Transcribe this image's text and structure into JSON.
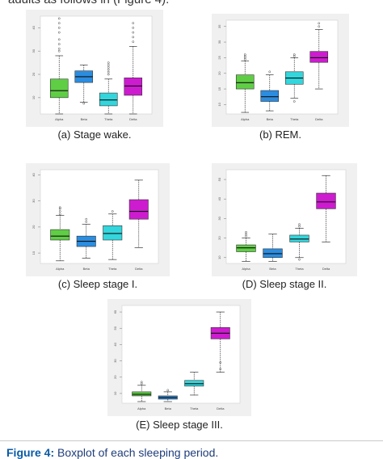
{
  "top_text": "adults as follows in (Figure 4).",
  "figure_caption": {
    "label": "Figure 4:",
    "text": "Boxplot of each sleeping period."
  },
  "colors": {
    "alpha": "#5fce45",
    "beta": "#2b8de0",
    "theta": "#33d6dc",
    "delta": "#cd1ccf"
  },
  "chart_data": [
    {
      "type": "box",
      "caption": "(a) Stage wake.",
      "categories": [
        "Alpha",
        "Beta",
        "Theta",
        "Delta"
      ],
      "yticks": [
        "10",
        "20",
        "30",
        "40"
      ],
      "ylim": [
        3,
        45
      ],
      "boxes": [
        {
          "lo": 3,
          "q1": 10,
          "med": 13,
          "q3": 18,
          "hi": 28,
          "outliers": [
            30,
            31,
            33,
            35,
            38,
            40,
            42,
            44
          ]
        },
        {
          "lo": 8,
          "q1": 16.5,
          "med": 19,
          "q3": 21.5,
          "hi": 24,
          "outliers": [
            7.5
          ]
        },
        {
          "lo": 3,
          "q1": 6.5,
          "med": 9,
          "q3": 12,
          "hi": 18,
          "outliers": [
            20,
            21,
            22,
            23,
            24,
            25
          ]
        },
        {
          "lo": 3,
          "q1": 11,
          "med": 15,
          "q3": 18.5,
          "hi": 32,
          "outliers": [
            34,
            36,
            38,
            40,
            42
          ]
        }
      ]
    },
    {
      "type": "box",
      "caption": "(b) REM.",
      "categories": [
        "Alpha",
        "Beta",
        "Theta",
        "Delta"
      ],
      "yticks": [
        "10",
        "15",
        "20",
        "25",
        "30",
        "35"
      ],
      "ylim": [
        7,
        37
      ],
      "boxes": [
        {
          "lo": 7.5,
          "q1": 15,
          "med": 17,
          "q3": 19.5,
          "hi": 24,
          "outliers": [
            24.5,
            25,
            25.5,
            26
          ]
        },
        {
          "lo": 8,
          "q1": 11,
          "med": 12.5,
          "q3": 14.5,
          "hi": 19.5,
          "outliers": [
            20.5
          ]
        },
        {
          "lo": 12,
          "q1": 16.5,
          "med": 18.5,
          "q3": 20.5,
          "hi": 25,
          "outliers": [
            25.5,
            26,
            11
          ]
        },
        {
          "lo": 15,
          "q1": 23.5,
          "med": 25,
          "q3": 27,
          "hi": 34,
          "outliers": [
            35,
            36
          ]
        }
      ]
    },
    {
      "type": "box",
      "caption": "(c) Sleep stage I.",
      "categories": [
        "Alpha",
        "Beta",
        "Theta",
        "Delta"
      ],
      "yticks": [
        "10",
        "20",
        "30",
        "40"
      ],
      "ylim": [
        6,
        42
      ],
      "boxes": [
        {
          "lo": 7,
          "q1": 15,
          "med": 16.5,
          "q3": 19,
          "hi": 24.5,
          "outliers": [
            25,
            26,
            27,
            27.5
          ]
        },
        {
          "lo": 8,
          "q1": 12.5,
          "med": 14.5,
          "q3": 16.5,
          "hi": 21,
          "outliers": [
            22,
            23
          ]
        },
        {
          "lo": 7.5,
          "q1": 15,
          "med": 17.5,
          "q3": 20.5,
          "hi": 25,
          "outliers": [
            26
          ]
        },
        {
          "lo": 12,
          "q1": 23,
          "med": 26,
          "q3": 30.5,
          "hi": 38,
          "outliers": []
        }
      ]
    },
    {
      "type": "box",
      "caption": "(D) Sleep stage II.",
      "categories": [
        "Alpha",
        "Beta",
        "Theta",
        "Delta"
      ],
      "yticks": [
        "10",
        "20",
        "30",
        "40",
        "50"
      ],
      "ylim": [
        7,
        55
      ],
      "boxes": [
        {
          "lo": 8,
          "q1": 13,
          "med": 15,
          "q3": 16.5,
          "hi": 20,
          "outliers": [
            21,
            22,
            23
          ]
        },
        {
          "lo": 8,
          "q1": 10,
          "med": 12,
          "q3": 14.5,
          "hi": 22,
          "outliers": []
        },
        {
          "lo": 10,
          "q1": 18,
          "med": 19.5,
          "q3": 21.5,
          "hi": 25,
          "outliers": [
            26,
            27,
            9
          ]
        },
        {
          "lo": 18,
          "q1": 35,
          "med": 38.5,
          "q3": 43,
          "hi": 52,
          "outliers": []
        }
      ]
    },
    {
      "type": "box",
      "caption": "(E) Sleep stage III.",
      "categories": [
        "Alpha",
        "Beta",
        "Theta",
        "Delta"
      ],
      "yticks": [
        "10",
        "20",
        "30",
        "40",
        "50",
        "60"
      ],
      "ylim": [
        4,
        64
      ],
      "boxes": [
        {
          "lo": 5,
          "q1": 8.5,
          "med": 9.5,
          "q3": 11,
          "hi": 15,
          "outliers": [
            16,
            17
          ]
        },
        {
          "lo": 5,
          "q1": 6.5,
          "med": 7.5,
          "q3": 8.5,
          "hi": 11,
          "outliers": [
            12
          ]
        },
        {
          "lo": 9,
          "q1": 14.5,
          "med": 16,
          "q3": 18,
          "hi": 23,
          "outliers": []
        },
        {
          "lo": 23,
          "q1": 43.5,
          "med": 47,
          "q3": 50.5,
          "hi": 60,
          "outliers": [
            25,
            29
          ]
        }
      ]
    }
  ]
}
